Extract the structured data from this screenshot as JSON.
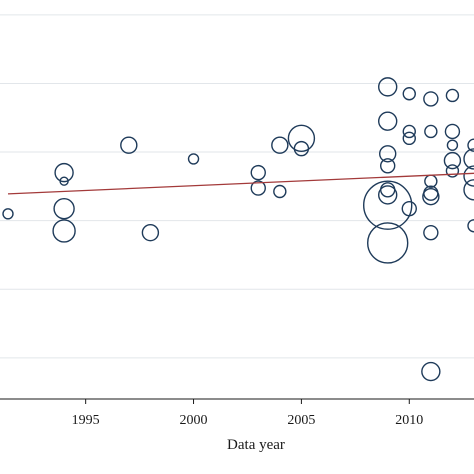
{
  "chart_data": {
    "type": "scatter",
    "title": "",
    "xlabel": "Data year",
    "ylabel": "",
    "xlim": [
      1991.4,
      2013.0
    ],
    "ylim": [
      -0.12,
      1.02
    ],
    "x_ticks": [
      1995,
      2000,
      2005,
      2010
    ],
    "x_tick_labels": [
      "1995",
      "2000",
      "2005",
      "2010"
    ],
    "y_gridlines": [
      0.0,
      0.2,
      0.4,
      0.6,
      0.8,
      1.0
    ],
    "grid": true,
    "legend": "none",
    "marker_color": "#1f3b5a",
    "fit_line_color": "#a33a3a",
    "fit_line": {
      "x": [
        1991.4,
        2013.0
      ],
      "y": [
        0.478,
        0.538
      ]
    },
    "points": [
      {
        "x": 1991.4,
        "y": 0.42,
        "size": 5
      },
      {
        "x": 1994.0,
        "y": 0.54,
        "size": 9
      },
      {
        "x": 1994.0,
        "y": 0.515,
        "size": 4
      },
      {
        "x": 1994.0,
        "y": 0.435,
        "size": 10
      },
      {
        "x": 1994.0,
        "y": 0.37,
        "size": 11
      },
      {
        "x": 1997.0,
        "y": 0.62,
        "size": 8
      },
      {
        "x": 1998.0,
        "y": 0.365,
        "size": 8
      },
      {
        "x": 2000.0,
        "y": 0.58,
        "size": 5
      },
      {
        "x": 2003.0,
        "y": 0.54,
        "size": 7
      },
      {
        "x": 2003.0,
        "y": 0.495,
        "size": 7
      },
      {
        "x": 2004.0,
        "y": 0.62,
        "size": 8
      },
      {
        "x": 2004.0,
        "y": 0.485,
        "size": 6
      },
      {
        "x": 2005.0,
        "y": 0.64,
        "size": 13
      },
      {
        "x": 2005.0,
        "y": 0.61,
        "size": 7
      },
      {
        "x": 2009.0,
        "y": 0.79,
        "size": 9
      },
      {
        "x": 2009.0,
        "y": 0.69,
        "size": 9
      },
      {
        "x": 2009.0,
        "y": 0.595,
        "size": 8
      },
      {
        "x": 2009.0,
        "y": 0.56,
        "size": 7
      },
      {
        "x": 2009.0,
        "y": 0.49,
        "size": 7
      },
      {
        "x": 2009.0,
        "y": 0.475,
        "size": 9
      },
      {
        "x": 2009.0,
        "y": 0.445,
        "size": 24
      },
      {
        "x": 2009.0,
        "y": 0.335,
        "size": 20
      },
      {
        "x": 2010.0,
        "y": 0.77,
        "size": 6
      },
      {
        "x": 2010.0,
        "y": 0.66,
        "size": 6
      },
      {
        "x": 2010.0,
        "y": 0.64,
        "size": 6
      },
      {
        "x": 2010.0,
        "y": 0.435,
        "size": 7
      },
      {
        "x": 2011.0,
        "y": 0.755,
        "size": 7
      },
      {
        "x": 2011.0,
        "y": 0.66,
        "size": 6
      },
      {
        "x": 2011.0,
        "y": 0.515,
        "size": 6
      },
      {
        "x": 2011.0,
        "y": 0.48,
        "size": 7
      },
      {
        "x": 2011.0,
        "y": 0.47,
        "size": 8
      },
      {
        "x": 2011.0,
        "y": 0.365,
        "size": 7
      },
      {
        "x": 2011.0,
        "y": -0.04,
        "size": 9
      },
      {
        "x": 2012.0,
        "y": 0.765,
        "size": 6
      },
      {
        "x": 2012.0,
        "y": 0.66,
        "size": 7
      },
      {
        "x": 2012.0,
        "y": 0.62,
        "size": 5
      },
      {
        "x": 2012.0,
        "y": 0.575,
        "size": 8
      },
      {
        "x": 2012.0,
        "y": 0.545,
        "size": 6
      },
      {
        "x": 2013.0,
        "y": 0.62,
        "size": 6
      },
      {
        "x": 2013.0,
        "y": 0.58,
        "size": 10
      },
      {
        "x": 2013.0,
        "y": 0.53,
        "size": 10
      },
      {
        "x": 2013.0,
        "y": 0.49,
        "size": 10
      },
      {
        "x": 2013.0,
        "y": 0.385,
        "size": 6
      }
    ]
  }
}
